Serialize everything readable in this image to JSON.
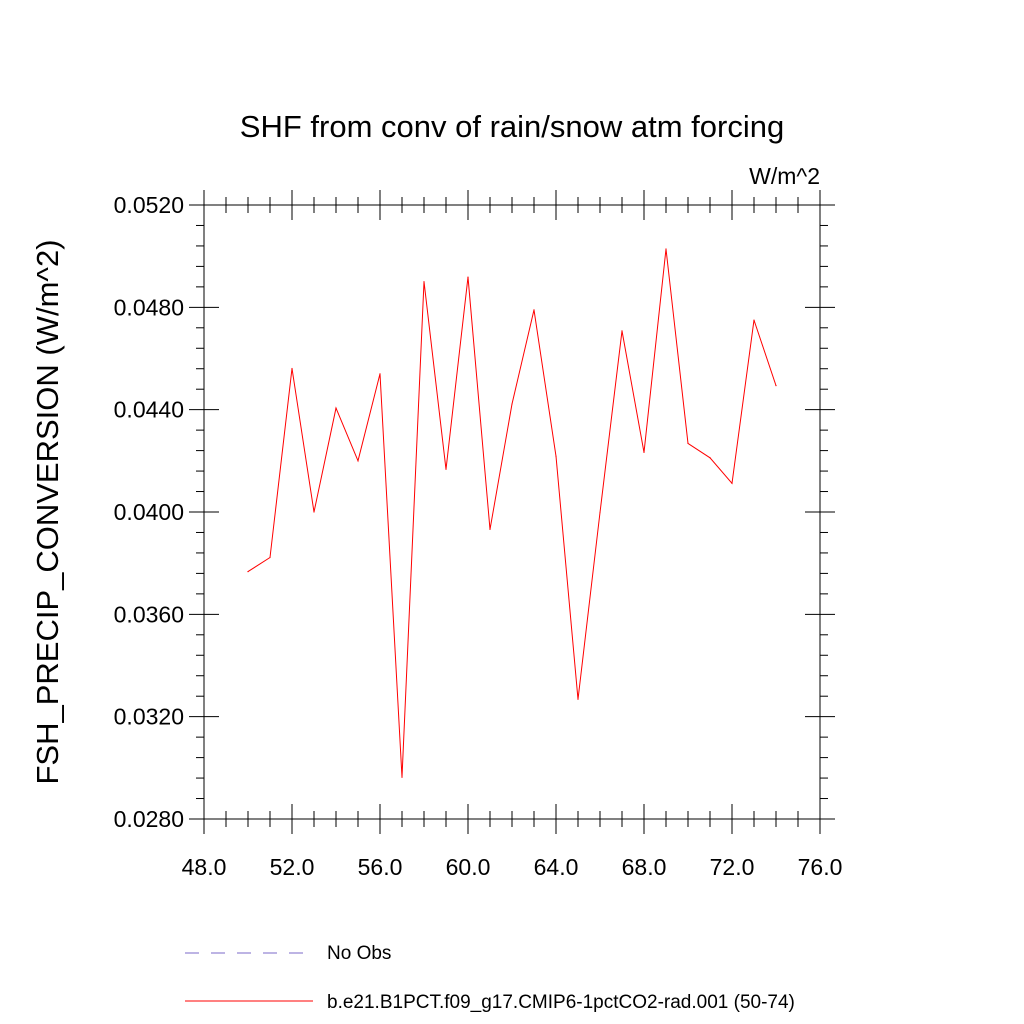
{
  "chart_data": {
    "type": "line",
    "title": "SHF from conv of rain/snow atm forcing",
    "units_label": "W/m^2",
    "xlabel": "",
    "ylabel": "FSH_PRECIP_CONVERSION  (W/m^2)",
    "xlim": [
      48.0,
      76.0
    ],
    "ylim": [
      0.028,
      0.052
    ],
    "x_ticks": [
      "48.0",
      "52.0",
      "56.0",
      "60.0",
      "64.0",
      "68.0",
      "72.0",
      "76.0"
    ],
    "y_ticks": [
      "0.0280",
      "0.0320",
      "0.0360",
      "0.0400",
      "0.0440",
      "0.0480",
      "0.0520"
    ],
    "grid": false,
    "legend_position": "bottom",
    "legend": [
      {
        "name": "No Obs",
        "style": "dashed",
        "color": "#7b68c8"
      },
      {
        "name": "b.e21.B1PCT.f09_g17.CMIP6-1pctCO2-rad.001 (50-74)",
        "style": "solid",
        "color": "#ff0000"
      }
    ],
    "x": [
      50,
      51,
      52,
      53,
      54,
      55,
      56,
      57,
      58,
      59,
      60,
      61,
      62,
      63,
      64,
      65,
      66,
      67,
      68,
      69,
      70,
      71,
      72,
      73,
      74
    ],
    "series": [
      {
        "name": "b.e21.B1PCT.f09_g17.CMIP6-1pctCO2-rad.001 (50-74)",
        "color": "#ff0000",
        "values": [
          0.03767,
          0.03822,
          0.04561,
          0.04,
          0.04406,
          0.042,
          0.0454,
          0.02963,
          0.049,
          0.04167,
          0.04918,
          0.03932,
          0.04422,
          0.0479,
          0.04218,
          0.03268,
          0.03998,
          0.04708,
          0.04233,
          0.05028,
          0.04268,
          0.04212,
          0.04112,
          0.0475,
          0.04494
        ]
      }
    ]
  }
}
